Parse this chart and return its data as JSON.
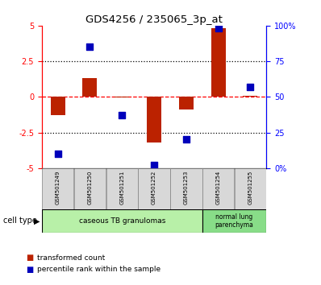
{
  "title": "GDS4256 / 235065_3p_at",
  "samples": [
    "GSM501249",
    "GSM501250",
    "GSM501251",
    "GSM501252",
    "GSM501253",
    "GSM501254",
    "GSM501255"
  ],
  "transformed_count": [
    -1.3,
    1.3,
    -0.05,
    -3.2,
    -0.9,
    4.85,
    0.1
  ],
  "percentile_rank": [
    10,
    85,
    37,
    2,
    20,
    98,
    57
  ],
  "ylim": [
    -5,
    5
  ],
  "yticks_left": [
    -5,
    -2.5,
    0,
    2.5,
    5
  ],
  "yticklabels_left": [
    "-5",
    "-2.5",
    "0",
    "2.5",
    "5"
  ],
  "yticklabels_right": [
    "0%",
    "25",
    "50",
    "75",
    "100%"
  ],
  "bar_color": "#bb2200",
  "dot_color": "#0000bb",
  "group1_color": "#b8f0a8",
  "group2_color": "#88dd88",
  "sample_box_color": "#d8d8d8",
  "legend_bar_label": "transformed count",
  "legend_dot_label": "percentile rank within the sample",
  "cell_type_label": "cell type",
  "bar_width": 0.45,
  "dot_size": 28
}
